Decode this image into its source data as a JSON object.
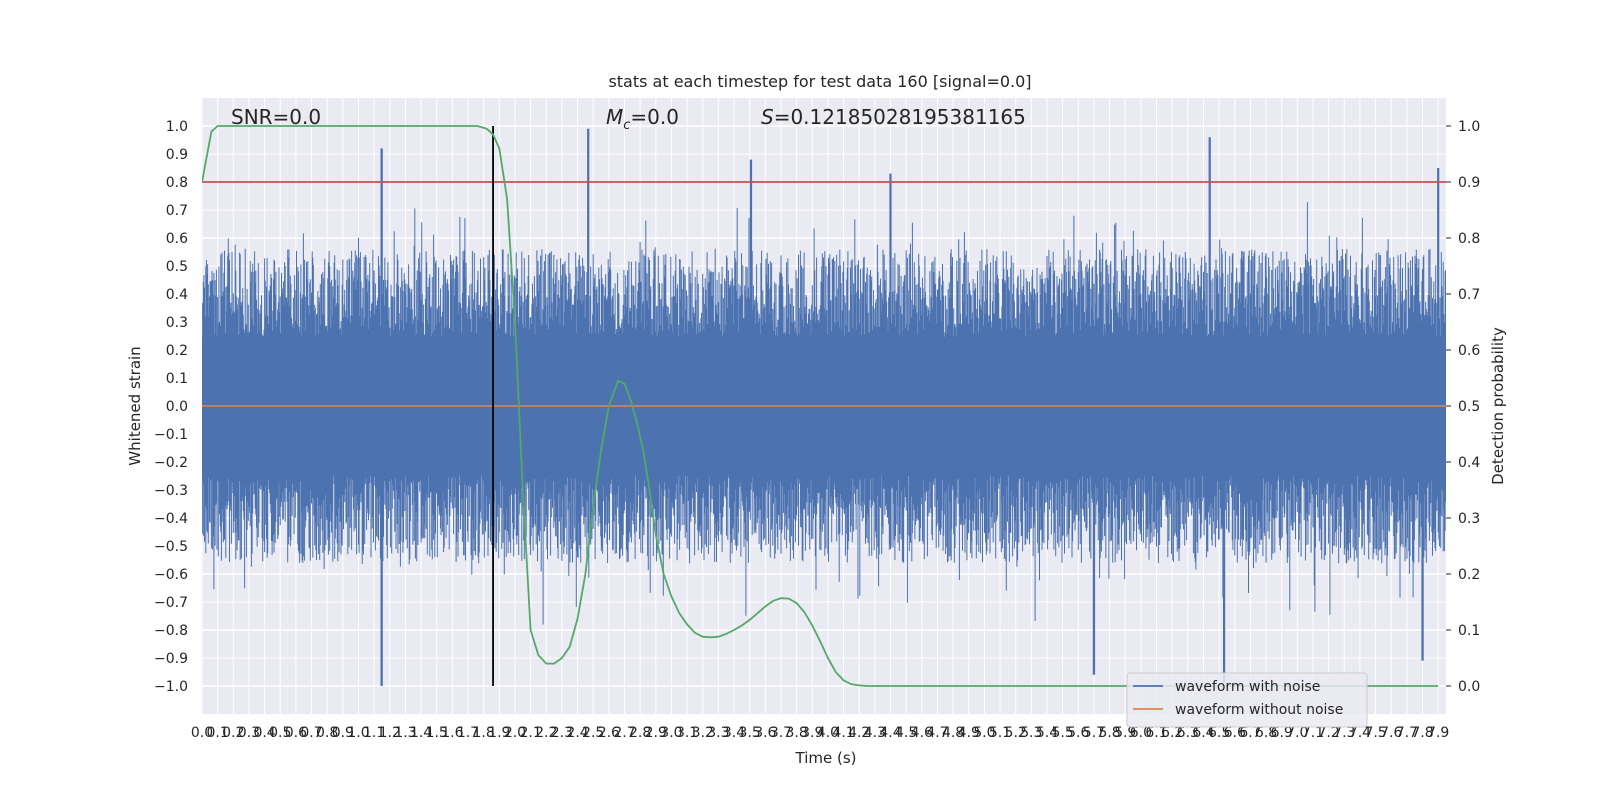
{
  "chart_data": {
    "type": "line",
    "title": "stats at each timestep for test data 160 [signal=0.0]",
    "xlabel": "Time (s)",
    "ylabel": "Whitened strain",
    "y2label": "Detection probability",
    "xlim": [
      0,
      7.95
    ],
    "ylim": [
      -1.1,
      1.1
    ],
    "y2lim": [
      -0.05,
      1.05
    ],
    "x_ticks": [
      "0.0",
      "0.1",
      "0.2",
      "0.3",
      "0.4",
      "0.5",
      "0.6",
      "0.7",
      "0.8",
      "0.9",
      "1.0",
      "1.1",
      "1.2",
      "1.3",
      "1.4",
      "1.5",
      "1.6",
      "1.7",
      "1.8",
      "1.9",
      "2.0",
      "2.1",
      "2.2",
      "2.3",
      "2.4",
      "2.5",
      "2.6",
      "2.7",
      "2.8",
      "2.9",
      "3.0",
      "3.1",
      "3.2",
      "3.3",
      "3.4",
      "3.5",
      "3.6",
      "3.7",
      "3.8",
      "3.9",
      "4.0",
      "4.1",
      "4.2",
      "4.3",
      "4.4",
      "4.5",
      "4.6",
      "4.7",
      "4.8",
      "4.9",
      "5.0",
      "5.1",
      "5.2",
      "5.3",
      "5.4",
      "5.5",
      "5.6",
      "5.7",
      "5.8",
      "5.9",
      "6.0",
      "6.1",
      "6.2",
      "6.3",
      "6.4",
      "6.5",
      "6.6",
      "6.7",
      "6.8",
      "6.9",
      "7.0",
      "7.1",
      "7.2",
      "7.3",
      "7.4",
      "7.5",
      "7.6",
      "7.7",
      "7.8",
      "7.9"
    ],
    "y_ticks": [
      "1.0",
      "0.9",
      "0.8",
      "0.7",
      "0.6",
      "0.5",
      "0.4",
      "0.3",
      "0.2",
      "0.1",
      "0.0",
      "-0.1",
      "-0.2",
      "-0.3",
      "-0.4",
      "-0.5",
      "-0.6",
      "-0.7",
      "-0.8",
      "-0.9",
      "-1.0"
    ],
    "y2_ticks": [
      "1.0",
      "0.9",
      "0.8",
      "0.7",
      "0.6",
      "0.5",
      "0.4",
      "0.3",
      "0.2",
      "0.1",
      "0.0"
    ],
    "annotations": {
      "snr": "SNR=0.0",
      "mc_symbol": "M",
      "mc_sub": "c",
      "mc_value": "=0.0",
      "s_symbol": "S",
      "s_value": "=0.12185028195381165"
    },
    "threshold_y2": 0.9,
    "marker_x": 1.86,
    "noise_envelope": {
      "typical_amplitude": 0.45,
      "peak_upper": 0.99,
      "peak_lower": -1.0,
      "peaks_upper": [
        [
          1.15,
          0.92
        ],
        [
          2.47,
          0.99
        ],
        [
          3.51,
          0.88
        ],
        [
          4.4,
          0.83
        ],
        [
          6.44,
          0.96
        ],
        [
          7.9,
          0.85
        ]
      ],
      "peaks_lower": [
        [
          1.15,
          -1.0
        ],
        [
          5.7,
          -0.96
        ],
        [
          6.53,
          -0.99
        ],
        [
          7.8,
          -0.91
        ]
      ]
    },
    "series": [
      {
        "name": "waveform with noise",
        "color": "#4c72b0"
      },
      {
        "name": "waveform without noise",
        "color": "#dd8452",
        "values": [
          0,
          0
        ]
      },
      {
        "color": "#55a868",
        "x": [
          0.0,
          0.06,
          0.1,
          0.2,
          0.4,
          1.0,
          1.6,
          1.76,
          1.82,
          1.86,
          1.9,
          1.95,
          2.0,
          2.05,
          2.1,
          2.15,
          2.2,
          2.25,
          2.3,
          2.35,
          2.4,
          2.45,
          2.5,
          2.55,
          2.6,
          2.66,
          2.7,
          2.74,
          2.78,
          2.82,
          2.86,
          2.9,
          2.95,
          3.0,
          3.05,
          3.1,
          3.15,
          3.2,
          3.25,
          3.3,
          3.35,
          3.4,
          3.45,
          3.5,
          3.55,
          3.6,
          3.65,
          3.7,
          3.75,
          3.8,
          3.85,
          3.9,
          3.95,
          4.0,
          4.05,
          4.1,
          4.15,
          4.2,
          4.25,
          4.3,
          4.35,
          4.4,
          4.45,
          4.5,
          4.6,
          5.0,
          6.0,
          7.0,
          7.9
        ],
        "values": [
          0.9,
          0.99,
          1.0,
          1.0,
          1.0,
          1.0,
          1.0,
          1.0,
          0.995,
          0.985,
          0.96,
          0.87,
          0.65,
          0.35,
          0.1,
          0.055,
          0.04,
          0.04,
          0.05,
          0.07,
          0.12,
          0.2,
          0.32,
          0.42,
          0.5,
          0.545,
          0.54,
          0.51,
          0.47,
          0.42,
          0.35,
          0.27,
          0.2,
          0.16,
          0.13,
          0.11,
          0.095,
          0.088,
          0.087,
          0.088,
          0.093,
          0.1,
          0.108,
          0.118,
          0.13,
          0.142,
          0.152,
          0.157,
          0.156,
          0.148,
          0.132,
          0.108,
          0.08,
          0.05,
          0.025,
          0.01,
          0.003,
          0.001,
          0.0,
          0.0,
          0.0,
          0.0,
          0.0,
          0.0,
          0.0,
          0.0,
          0.0,
          0.0,
          0.0
        ],
        "axis": "y2"
      }
    ],
    "legend": {
      "placement": "lower right"
    },
    "grid": true
  }
}
